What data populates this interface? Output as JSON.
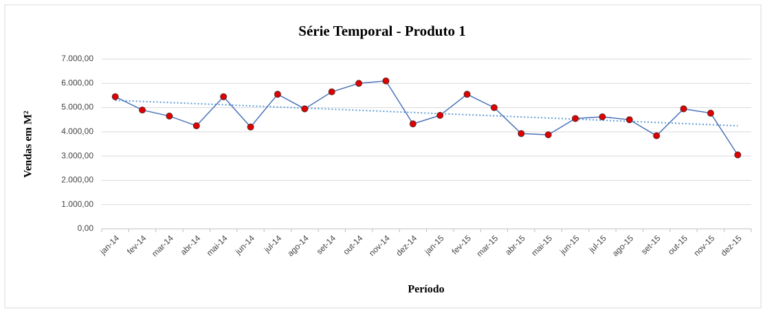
{
  "chart_data": {
    "type": "line",
    "title": "Série Temporal - Produto 1",
    "x_label": "Período",
    "y_label": "Vendas em M²",
    "categories": [
      "jan-14",
      "fev-14",
      "mar-14",
      "abr-14",
      "mai-14",
      "jun-14",
      "jul-14",
      "ago-14",
      "set-14",
      "out-14",
      "nov-14",
      "dez-14",
      "jan-15",
      "fev-15",
      "mar-15",
      "abr-15",
      "mai-15",
      "jun-15",
      "jul-15",
      "ago-15",
      "set-15",
      "out-15",
      "nov-15",
      "dez-15"
    ],
    "series": [
      {
        "name": "Produto 1",
        "color": "#4a72b8",
        "marker_color": "#e00000",
        "values": [
          5450,
          4900,
          4650,
          4250,
          5450,
          4200,
          5550,
          4950,
          5650,
          6000,
          6100,
          4330,
          4680,
          5550,
          5000,
          3930,
          3880,
          4550,
          4620,
          4500,
          3840,
          4950,
          4770,
          3050
        ]
      }
    ],
    "trendline": {
      "color": "#5b9bd5",
      "values": [
        5300,
        4250
      ]
    },
    "ylim": [
      0,
      7000
    ],
    "yticks": [
      {
        "value": 0,
        "label": "0,00"
      },
      {
        "value": 1000,
        "label": "1.000,00"
      },
      {
        "value": 2000,
        "label": "2.000,00"
      },
      {
        "value": 3000,
        "label": "3.000,00"
      },
      {
        "value": 4000,
        "label": "4.000,00"
      },
      {
        "value": 5000,
        "label": "5.000,00"
      },
      {
        "value": 6000,
        "label": "6.000,00"
      },
      {
        "value": 7000,
        "label": "7.000,00"
      }
    ],
    "grid": true
  }
}
